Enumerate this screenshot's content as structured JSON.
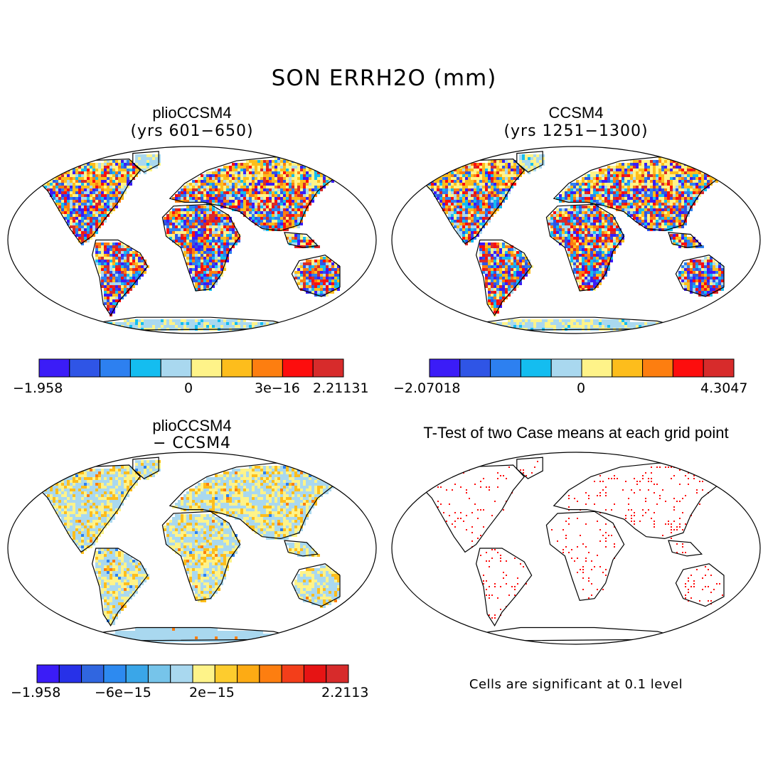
{
  "title": "SON ERRH2O (mm)",
  "panels": [
    {
      "id": "plio",
      "title": "plioCCSM4",
      "subtitle": "(yrs 601−650)",
      "colorbar": {
        "colors": [
          "#3b1cf7",
          "#2f55e6",
          "#2d80f0",
          "#14bdf0",
          "#a9d8ef",
          "#fef389",
          "#fdbd1c",
          "#fd7e10",
          "#fd0d0d",
          "#d72b2b"
        ],
        "labels": [
          "−1.958",
          "0",
          "3e−16",
          "2.21131"
        ]
      }
    },
    {
      "id": "ccsm4",
      "title": "CCSM4",
      "subtitle": "(yrs 1251−1300)",
      "colorbar": {
        "colors": [
          "#3b1cf7",
          "#2f55e6",
          "#2d80f0",
          "#14bdf0",
          "#a9d8ef",
          "#fef389",
          "#fdbd1c",
          "#fd7e10",
          "#fd0d0d",
          "#d72b2b"
        ],
        "labels": [
          "−2.07018",
          "0",
          "4.3047"
        ]
      }
    },
    {
      "id": "diff",
      "title": "plioCCSM4",
      "subtitle": "− CCSM4",
      "colorbar": {
        "colors": [
          "#3b1cf7",
          "#2731e8",
          "#3066e0",
          "#2d8af0",
          "#3aa6e8",
          "#76c4ea",
          "#a9d8ef",
          "#fef389",
          "#fdcc2e",
          "#fdab14",
          "#fd7e10",
          "#f33e1a",
          "#e61414",
          "#d72b2b"
        ],
        "labels": [
          "−1.958",
          "−6e−15",
          "2e−15",
          "2.2113"
        ]
      }
    },
    {
      "id": "ttest",
      "title": "T-Test of two Case means at each grid point",
      "note": "Cells are significant at 0.1 level"
    }
  ]
}
